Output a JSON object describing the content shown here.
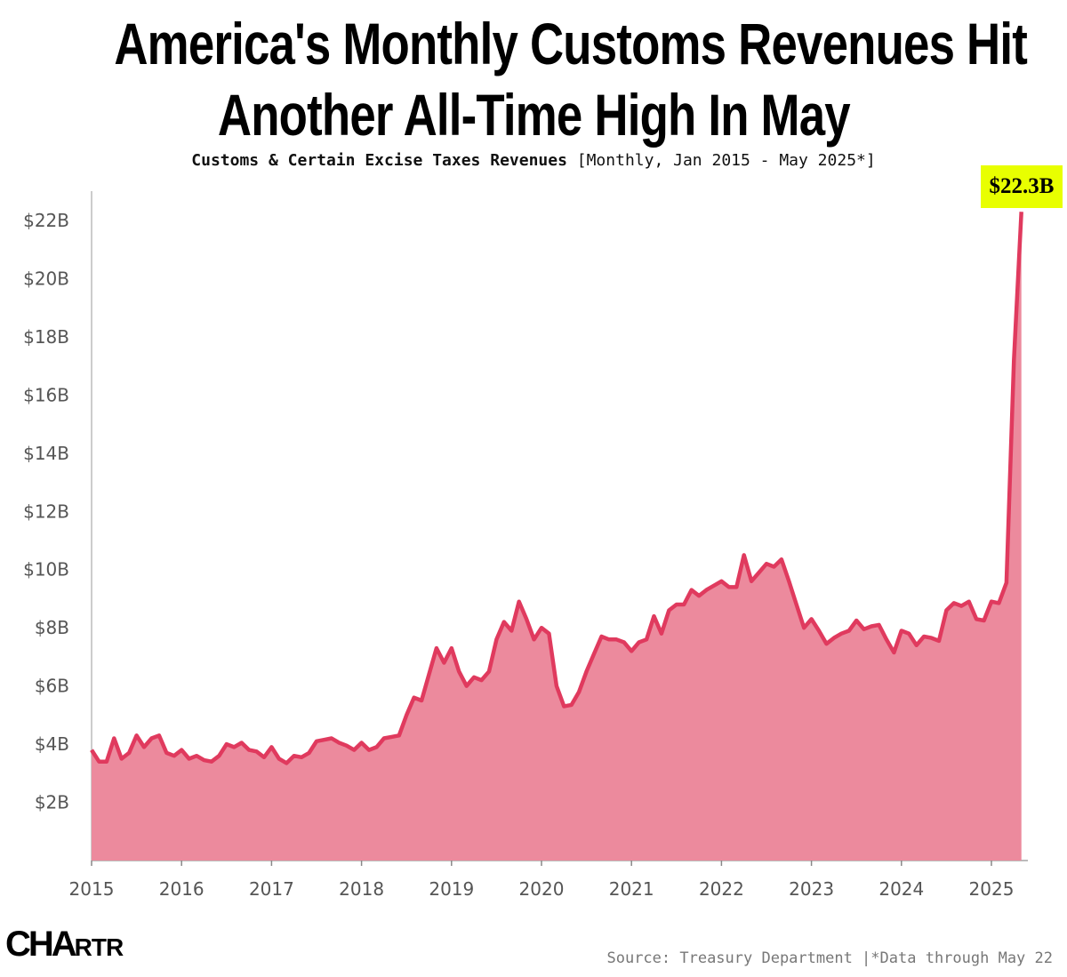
{
  "title_line1": "America's Monthly Customs Revenues Hit",
  "title_line2": "Another All-Time High In May",
  "subtitle_bold": "Customs & Certain Excise Taxes Revenues",
  "subtitle_rest": " [Monthly, Jan 2015 - May 2025*]",
  "callout": "$22.3B",
  "logo": "CHARTR",
  "source": "Source: Treasury Department |*Data through May 22",
  "colors": {
    "line": "#e03a5e",
    "fill": "#ec8a9d",
    "callout_bg": "#e8ff00"
  },
  "chart_data": {
    "type": "area",
    "title": "America's Monthly Customs Revenues Hit Another All-Time High In May",
    "subtitle": "Customs & Certain Excise Taxes Revenues [Monthly, Jan 2015 - May 2025*]",
    "xlabel": "",
    "ylabel": "",
    "x_start": "2015-01",
    "x_end": "2025-05",
    "frequency": "monthly",
    "ylim": [
      0,
      23
    ],
    "y_ticks": [
      2,
      4,
      6,
      8,
      10,
      12,
      14,
      16,
      18,
      20,
      22
    ],
    "y_tick_labels": [
      "$2B",
      "$4B",
      "$6B",
      "$8B",
      "$10B",
      "$12B",
      "$14B",
      "$16B",
      "$18B",
      "$20B",
      "$22B"
    ],
    "x_tick_labels": [
      "2015",
      "2016",
      "2017",
      "2018",
      "2019",
      "2020",
      "2021",
      "2022",
      "2023",
      "2024",
      "2025"
    ],
    "grid": false,
    "unit": "billion USD",
    "series": [
      {
        "values": [
          3.8,
          3.4,
          3.4,
          4.2,
          3.5,
          3.7,
          4.3,
          3.9,
          4.2,
          4.3,
          3.7,
          3.6,
          3.8,
          3.5,
          3.6,
          3.45,
          3.4,
          3.6,
          4.0,
          3.9,
          4.05,
          3.8,
          3.75,
          3.55,
          3.9,
          3.5,
          3.35,
          3.6,
          3.55,
          3.7,
          4.1,
          4.15,
          4.2,
          4.05,
          3.95,
          3.8,
          4.05,
          3.8,
          3.9,
          4.2,
          4.25,
          4.3,
          5.0,
          5.6,
          5.5,
          6.4,
          7.3,
          6.8,
          7.3,
          6.5,
          6.0,
          6.3,
          6.2,
          6.5,
          7.6,
          8.2,
          7.9,
          8.9,
          8.3,
          7.6,
          8.0,
          7.8,
          6.0,
          5.3,
          5.35,
          5.8,
          6.5,
          7.1,
          7.7,
          7.6,
          7.6,
          7.5,
          7.2,
          7.5,
          7.6,
          8.4,
          7.8,
          8.6,
          8.8,
          8.8,
          9.3,
          9.1,
          9.3,
          9.45,
          9.6,
          9.4,
          9.4,
          10.5,
          9.6,
          9.9,
          10.2,
          10.1,
          10.35,
          9.6,
          8.8,
          8.0,
          8.3,
          7.9,
          7.45,
          7.65,
          7.8,
          7.9,
          8.25,
          7.95,
          8.05,
          8.1,
          7.6,
          7.15,
          7.9,
          7.8,
          7.4,
          7.7,
          7.65,
          7.55,
          8.6,
          8.85,
          8.75,
          8.9,
          8.3,
          8.25,
          8.9,
          8.85,
          9.55,
          17.2,
          22.3
        ]
      }
    ],
    "annotations": [
      {
        "text": "$22.3B",
        "x": "2025-05",
        "y": 22.3
      }
    ]
  }
}
